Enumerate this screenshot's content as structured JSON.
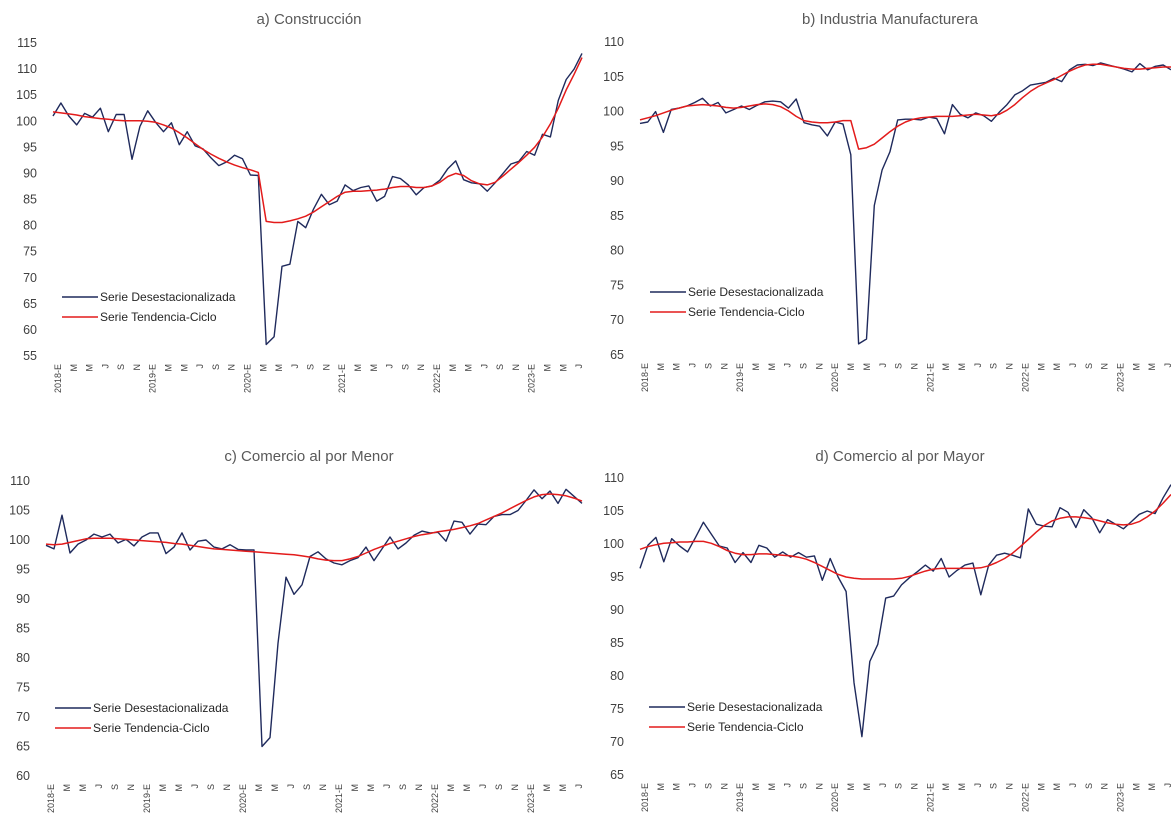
{
  "chart_data": [
    {
      "type": "line",
      "title": "a) Construcción",
      "x_labels": [
        "2018-E",
        "M",
        "M",
        "J",
        "S",
        "N",
        "2019-E",
        "M",
        "M",
        "J",
        "S",
        "N",
        "2020-E",
        "M",
        "M",
        "J",
        "S",
        "N",
        "2021-E",
        "M",
        "M",
        "J",
        "S",
        "N",
        "2022-E",
        "M",
        "M",
        "J",
        "S",
        "N",
        "2023-E",
        "M",
        "M",
        "J"
      ],
      "ylim": [
        55,
        115
      ],
      "yticks": [
        55,
        60,
        65,
        70,
        75,
        80,
        85,
        90,
        95,
        100,
        105,
        110,
        115
      ],
      "legend_position": "bottom-left",
      "grid": false,
      "series": [
        {
          "name": "Serie Desestacionalizada",
          "color": "#1f2a5c",
          "values": [
            101.0,
            103.5,
            101.0,
            99.3,
            101.5,
            100.8,
            102.5,
            98.0,
            101.3,
            101.3,
            92.7,
            99.0,
            102.0,
            99.8,
            98.0,
            99.7,
            95.5,
            98.0,
            95.3,
            94.7,
            93.0,
            91.5,
            92.2,
            93.5,
            92.8,
            89.7,
            89.6,
            57.2,
            58.7,
            72.2,
            72.6,
            80.8,
            79.6,
            83.2,
            86.0,
            84.0,
            84.7,
            87.8,
            86.7,
            87.3,
            87.6,
            84.7,
            85.6,
            89.4,
            89.0,
            87.8,
            85.9,
            87.3,
            87.6,
            88.7,
            90.9,
            92.4,
            88.8,
            88.2,
            88.0,
            86.6,
            88.2,
            90.0,
            91.8,
            92.3,
            94.2,
            93.5,
            97.5,
            97.0,
            104.0,
            108.0,
            110.0,
            113.0
          ]
        },
        {
          "name": "Serie Tendencia-Ciclo",
          "color": "#e31b1b",
          "values": [
            101.8,
            101.6,
            101.4,
            101.2,
            100.9,
            100.7,
            100.5,
            100.4,
            100.2,
            100.1,
            100.1,
            100.1,
            100.0,
            99.8,
            99.3,
            98.7,
            97.8,
            96.8,
            95.7,
            94.6,
            93.7,
            92.9,
            92.2,
            91.6,
            91.1,
            90.7,
            90.2,
            80.8,
            80.6,
            80.6,
            80.9,
            81.3,
            81.8,
            82.6,
            83.6,
            84.6,
            85.6,
            86.4,
            86.6,
            86.6,
            86.7,
            86.8,
            87.0,
            87.3,
            87.5,
            87.5,
            87.3,
            87.3,
            87.6,
            88.3,
            89.4,
            90.0,
            89.6,
            88.6,
            88.0,
            87.8,
            88.3,
            89.5,
            90.8,
            92.1,
            93.5,
            95.0,
            97.0,
            99.5,
            102.5,
            106.0,
            109.0,
            112.2
          ]
        }
      ]
    },
    {
      "type": "line",
      "title": "b) Industria Manufacturera",
      "x_labels": [
        "2018-E",
        "M",
        "M",
        "J",
        "S",
        "N",
        "2019-E",
        "M",
        "M",
        "J",
        "S",
        "N",
        "2020-E",
        "M",
        "M",
        "J",
        "S",
        "N",
        "2021-E",
        "M",
        "M",
        "J",
        "S",
        "N",
        "2022-E",
        "M",
        "M",
        "J",
        "S",
        "N",
        "2023-E",
        "M",
        "M",
        "J"
      ],
      "ylim": [
        65,
        110
      ],
      "yticks": [
        65,
        70,
        75,
        80,
        85,
        90,
        95,
        100,
        105,
        110
      ],
      "legend_position": "bottom-left",
      "grid": false,
      "series": [
        {
          "name": "Serie Desestacionalizada",
          "color": "#1f2a5c",
          "values": [
            98.3,
            98.5,
            100.0,
            97.0,
            100.3,
            100.5,
            100.8,
            101.3,
            101.9,
            100.8,
            101.3,
            99.8,
            100.3,
            100.8,
            100.3,
            100.9,
            101.4,
            101.5,
            101.4,
            100.5,
            101.8,
            98.4,
            98.1,
            97.9,
            96.5,
            98.5,
            98.2,
            93.8,
            66.6,
            67.3,
            86.5,
            91.6,
            94.2,
            98.8,
            98.9,
            98.9,
            98.8,
            99.2,
            99.0,
            96.8,
            101.0,
            99.6,
            99.1,
            99.8,
            99.4,
            98.6,
            99.9,
            101.0,
            102.4,
            103.0,
            103.8,
            104.0,
            104.2,
            104.8,
            104.3,
            106.0,
            106.7,
            106.8,
            106.6,
            107.0,
            106.7,
            106.4,
            106.1,
            105.7,
            106.9,
            106.0,
            106.5,
            106.7,
            106.0
          ]
        },
        {
          "name": "Serie Tendencia-Ciclo",
          "color": "#e31b1b",
          "values": [
            98.8,
            99.1,
            99.4,
            99.8,
            100.2,
            100.5,
            100.8,
            100.9,
            101.0,
            100.9,
            100.8,
            100.6,
            100.5,
            100.6,
            100.8,
            101.0,
            101.1,
            101.0,
            100.7,
            100.1,
            99.3,
            98.7,
            98.5,
            98.4,
            98.4,
            98.5,
            98.7,
            98.7,
            94.6,
            94.8,
            95.3,
            96.2,
            97.1,
            97.9,
            98.5,
            98.9,
            99.1,
            99.2,
            99.3,
            99.3,
            99.3,
            99.4,
            99.5,
            99.6,
            99.5,
            99.4,
            99.6,
            100.2,
            101.0,
            102.0,
            102.9,
            103.6,
            104.1,
            104.6,
            105.2,
            105.8,
            106.3,
            106.7,
            106.8,
            106.8,
            106.6,
            106.4,
            106.2,
            106.1,
            106.1,
            106.2,
            106.3,
            106.4,
            106.4
          ]
        }
      ]
    },
    {
      "type": "line",
      "title": "c) Comercio al por Menor",
      "x_labels": [
        "2018-E",
        "M",
        "M",
        "J",
        "S",
        "N",
        "2019-E",
        "M",
        "M",
        "J",
        "S",
        "N",
        "2020-E",
        "M",
        "M",
        "J",
        "S",
        "N",
        "2021-E",
        "M",
        "M",
        "J",
        "S",
        "N",
        "2022-E",
        "M",
        "M",
        "J",
        "S",
        "N",
        "2023-E",
        "M",
        "M",
        "J"
      ],
      "ylim": [
        60,
        110
      ],
      "yticks": [
        60,
        65,
        70,
        75,
        80,
        85,
        90,
        95,
        100,
        105,
        110
      ],
      "legend_position": "bottom-left",
      "grid": false,
      "series": [
        {
          "name": "Serie Desestacionalizada",
          "color": "#1f2a5c",
          "values": [
            99.1,
            98.5,
            104.2,
            97.8,
            99.3,
            100.0,
            101.0,
            100.5,
            101.0,
            99.5,
            100.1,
            99.0,
            100.5,
            101.2,
            101.2,
            97.7,
            98.8,
            101.2,
            98.3,
            99.8,
            100.0,
            98.8,
            98.5,
            99.2,
            98.4,
            98.3,
            98.3,
            65.0,
            66.5,
            82.5,
            93.7,
            90.8,
            92.4,
            97.2,
            98.0,
            96.8,
            96.1,
            95.8,
            96.5,
            97.0,
            98.8,
            96.5,
            98.5,
            100.5,
            98.5,
            99.5,
            100.8,
            101.5,
            101.2,
            101.3,
            99.8,
            103.2,
            103.0,
            101.0,
            102.7,
            102.6,
            104.0,
            104.3,
            104.3,
            105.0,
            106.7,
            108.5,
            107.0,
            108.3,
            106.2,
            108.6,
            107.4,
            106.2
          ]
        },
        {
          "name": "Serie Tendencia-Ciclo",
          "color": "#e31b1b",
          "values": [
            99.3,
            99.2,
            99.3,
            99.6,
            99.9,
            100.2,
            100.3,
            100.3,
            100.3,
            100.2,
            100.1,
            100.0,
            99.9,
            99.8,
            99.7,
            99.6,
            99.4,
            99.3,
            99.1,
            98.9,
            98.7,
            98.5,
            98.4,
            98.3,
            98.2,
            98.1,
            98.0,
            97.9,
            97.8,
            97.7,
            97.6,
            97.5,
            97.3,
            97.1,
            96.8,
            96.6,
            96.5,
            96.5,
            96.8,
            97.2,
            97.8,
            98.4,
            98.9,
            99.4,
            99.8,
            100.2,
            100.6,
            100.9,
            101.1,
            101.4,
            101.6,
            101.8,
            102.1,
            102.4,
            102.8,
            103.4,
            104.0,
            104.6,
            105.3,
            106.0,
            106.7,
            107.3,
            107.7,
            107.8,
            107.7,
            107.5,
            107.1,
            106.6
          ]
        }
      ]
    },
    {
      "type": "line",
      "title": "d) Comercio al por Mayor",
      "x_labels": [
        "2018-E",
        "M",
        "M",
        "J",
        "S",
        "N",
        "2019-E",
        "M",
        "M",
        "J",
        "S",
        "N",
        "2020-E",
        "M",
        "M",
        "J",
        "S",
        "N",
        "2021-E",
        "M",
        "M",
        "J",
        "S",
        "N",
        "2022-E",
        "M",
        "M",
        "J",
        "S",
        "N",
        "2023-E",
        "M",
        "M",
        "J"
      ],
      "ylim": [
        65,
        110
      ],
      "yticks": [
        65,
        70,
        75,
        80,
        85,
        90,
        95,
        100,
        105,
        110
      ],
      "legend_position": "bottom-left",
      "grid": false,
      "series": [
        {
          "name": "Serie Desestacionalizada",
          "color": "#1f2a5c",
          "values": [
            96.3,
            99.8,
            101.0,
            97.3,
            100.8,
            99.7,
            98.8,
            101.0,
            103.3,
            101.5,
            99.7,
            99.4,
            97.2,
            98.7,
            97.2,
            99.8,
            99.4,
            98.0,
            98.8,
            98.0,
            98.7,
            98.0,
            98.2,
            94.5,
            97.8,
            95.0,
            92.8,
            79.0,
            70.8,
            82.2,
            84.8,
            91.8,
            92.1,
            93.8,
            94.9,
            95.8,
            96.8,
            95.9,
            97.8,
            95.0,
            96.0,
            96.8,
            97.1,
            92.3,
            96.8,
            98.3,
            98.6,
            98.3,
            97.9,
            105.3,
            103.0,
            102.7,
            102.6,
            105.5,
            104.8,
            102.5,
            105.2,
            104.0,
            101.7,
            103.7,
            103.0,
            102.3,
            103.4,
            104.5,
            105.0,
            104.6,
            107.0,
            109.0
          ]
        },
        {
          "name": "Serie Tendencia-Ciclo",
          "color": "#e31b1b",
          "values": [
            99.2,
            99.6,
            99.9,
            100.1,
            100.2,
            100.3,
            100.3,
            100.4,
            100.4,
            100.1,
            99.6,
            99.0,
            98.6,
            98.4,
            98.4,
            98.5,
            98.5,
            98.4,
            98.3,
            98.2,
            98.0,
            97.7,
            97.2,
            96.6,
            96.0,
            95.4,
            95.0,
            94.8,
            94.7,
            94.7,
            94.7,
            94.7,
            94.7,
            94.8,
            95.1,
            95.5,
            95.9,
            96.2,
            96.3,
            96.3,
            96.3,
            96.3,
            96.3,
            96.4,
            96.7,
            97.2,
            97.8,
            98.6,
            99.6,
            100.7,
            101.8,
            102.8,
            103.5,
            103.9,
            104.1,
            104.1,
            104.0,
            103.8,
            103.5,
            103.2,
            103.0,
            102.9,
            103.0,
            103.4,
            104.1,
            105.0,
            106.2,
            107.5
          ]
        }
      ]
    }
  ]
}
